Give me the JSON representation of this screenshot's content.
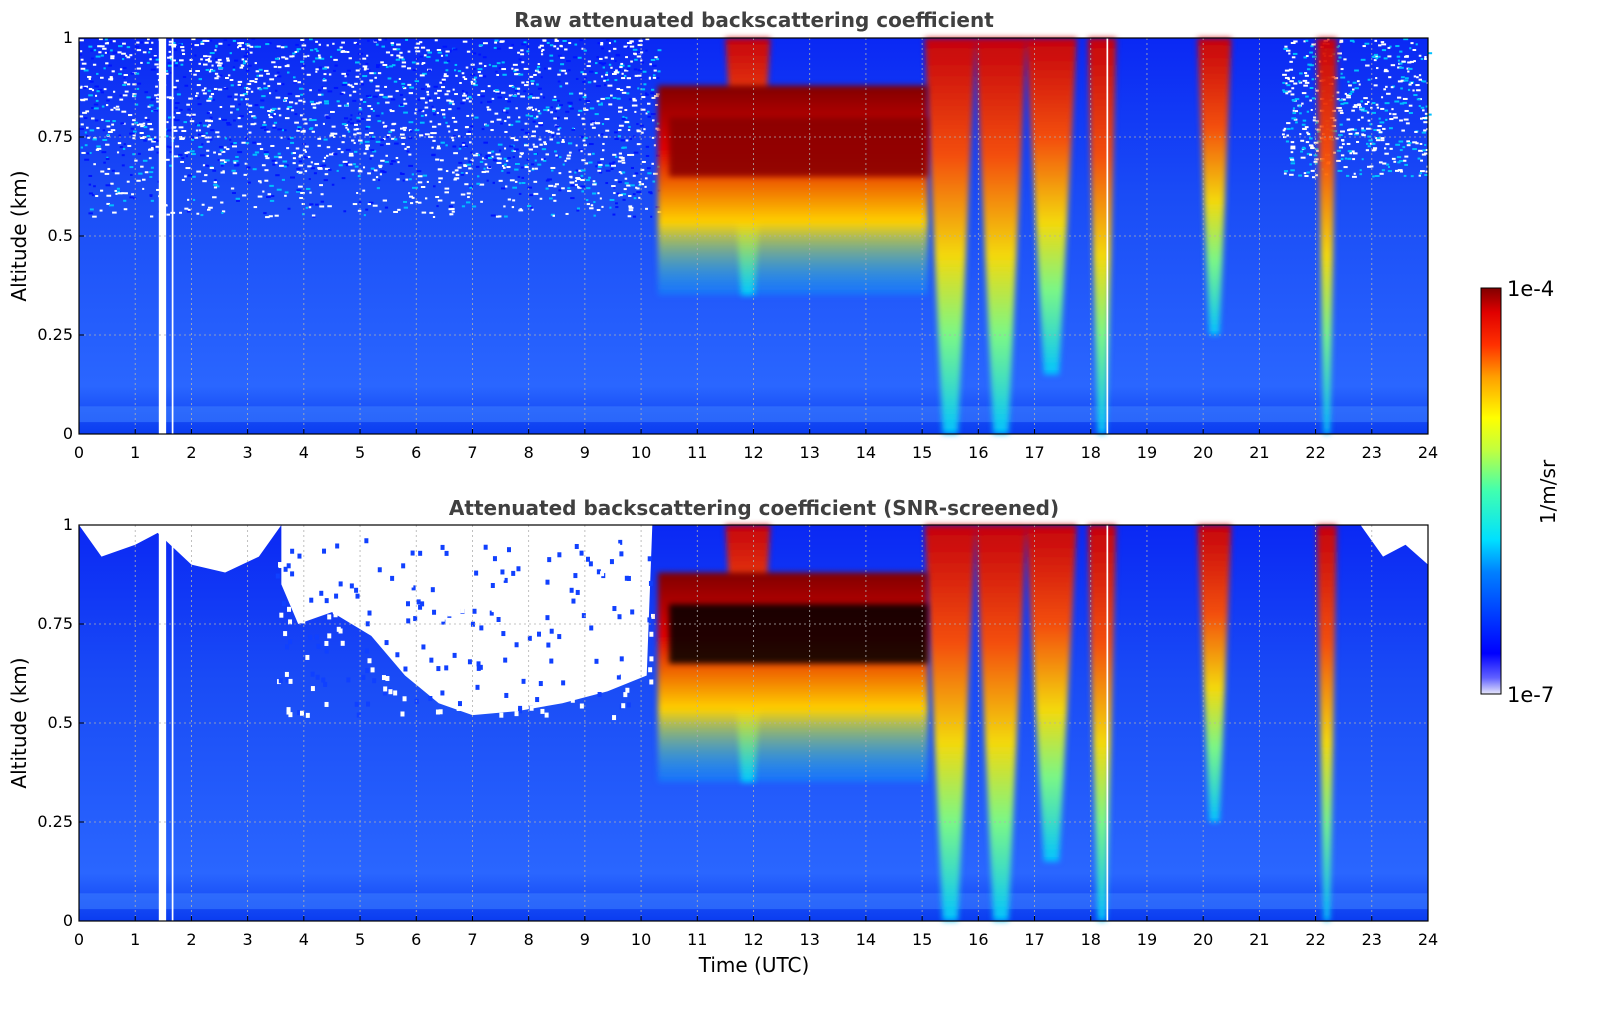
{
  "chart_data": [
    {
      "type": "heatmap",
      "title": "Raw attenuated backscattering coefficient",
      "xlabel": "",
      "ylabel": "Altitude (km)",
      "xlim": [
        0,
        24
      ],
      "ylim": [
        0,
        1
      ],
      "x_ticks": [
        "0",
        "1",
        "2",
        "3",
        "4",
        "5",
        "6",
        "7",
        "8",
        "9",
        "10",
        "11",
        "12",
        "13",
        "14",
        "15",
        "16",
        "17",
        "18",
        "19",
        "20",
        "21",
        "22",
        "23",
        "24"
      ],
      "y_ticks": [
        "0",
        "0.25",
        "0.5",
        "0.75",
        "1"
      ],
      "grid": true,
      "screened": false
    },
    {
      "type": "heatmap",
      "title": "Attenuated backscattering coefficient (SNR-screened)",
      "xlabel": "Time (UTC)",
      "ylabel": "Altitude (km)",
      "xlim": [
        0,
        24
      ],
      "ylim": [
        0,
        1
      ],
      "x_ticks": [
        "0",
        "1",
        "2",
        "3",
        "4",
        "5",
        "6",
        "7",
        "8",
        "9",
        "10",
        "11",
        "12",
        "13",
        "14",
        "15",
        "16",
        "17",
        "18",
        "19",
        "20",
        "21",
        "22",
        "23",
        "24"
      ],
      "y_ticks": [
        "0",
        "0.25",
        "0.5",
        "0.75",
        "1"
      ],
      "grid": true,
      "screened": true
    }
  ],
  "colorbar": {
    "label": "1/m/sr",
    "max_label": "1e-4",
    "min_label": "1e-7",
    "scale": "log",
    "range": [
      1e-07,
      0.0001
    ],
    "colormap": "jet"
  },
  "cloud_features": {
    "main_layer": {
      "start": 10.3,
      "end": 15.1,
      "base_km": 0.65,
      "top_km": 0.8
    },
    "dense_columns": [
      {
        "x": 11.9,
        "width": 0.8,
        "base_km": 0.35
      },
      {
        "x": 15.5,
        "width": 0.9,
        "base_km": 0.0
      },
      {
        "x": 16.4,
        "width": 0.9,
        "base_km": 0.0
      },
      {
        "x": 17.3,
        "width": 0.9,
        "base_km": 0.15
      },
      {
        "x": 18.2,
        "width": 0.5,
        "base_km": 0.0
      },
      {
        "x": 20.2,
        "width": 0.6,
        "base_km": 0.25
      },
      {
        "x": 22.2,
        "width": 0.35,
        "base_km": 0.0
      }
    ],
    "data_gaps": [
      {
        "start": 1.42,
        "end": 1.55
      },
      {
        "start": 1.65,
        "end": 1.68
      },
      {
        "start": 18.28,
        "end": 18.31
      }
    ]
  }
}
